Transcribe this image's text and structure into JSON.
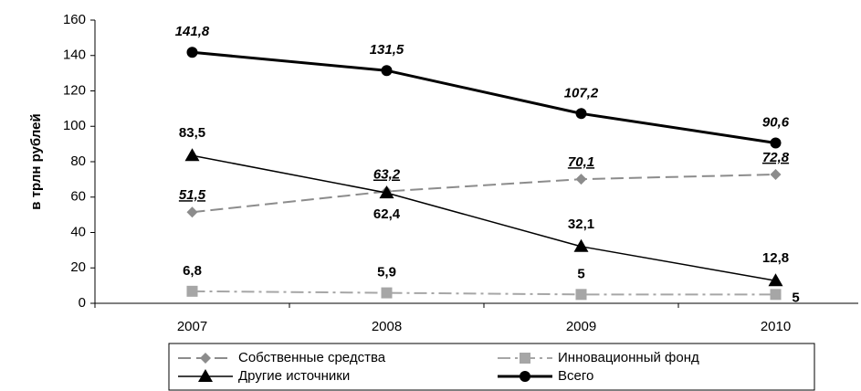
{
  "chart_data": {
    "type": "line",
    "ylabel": "в трлн рублей",
    "categories": [
      "2007",
      "2008",
      "2009",
      "2010"
    ],
    "ylim": [
      0,
      160
    ],
    "yticks": [
      0,
      20,
      40,
      60,
      80,
      100,
      120,
      140,
      160
    ],
    "legend": "bottom",
    "series": [
      {
        "name": "Собственные средства",
        "color": "#8c8c8c",
        "values": [
          51.5,
          63.2,
          70.1,
          72.8
        ],
        "value_labels": [
          "51,5",
          "63,2",
          "70,1",
          "72,8"
        ]
      },
      {
        "name": "Инновационный фонд",
        "color": "#a6a6a6",
        "values": [
          6.8,
          5.9,
          5,
          5
        ],
        "value_labels": [
          "6,8",
          "5,9",
          "5",
          "5"
        ]
      },
      {
        "name": "Другие источники",
        "color": "#000000",
        "values": [
          83.5,
          62.4,
          32.1,
          12.8
        ],
        "value_labels": [
          "83,5",
          "62,4",
          "32,1",
          "12,8"
        ]
      },
      {
        "name": "Всего",
        "color": "#000000",
        "values": [
          141.8,
          131.5,
          107.2,
          90.6
        ],
        "value_labels": [
          "141,8",
          "131,5",
          "107,2",
          "90,6"
        ]
      }
    ]
  }
}
